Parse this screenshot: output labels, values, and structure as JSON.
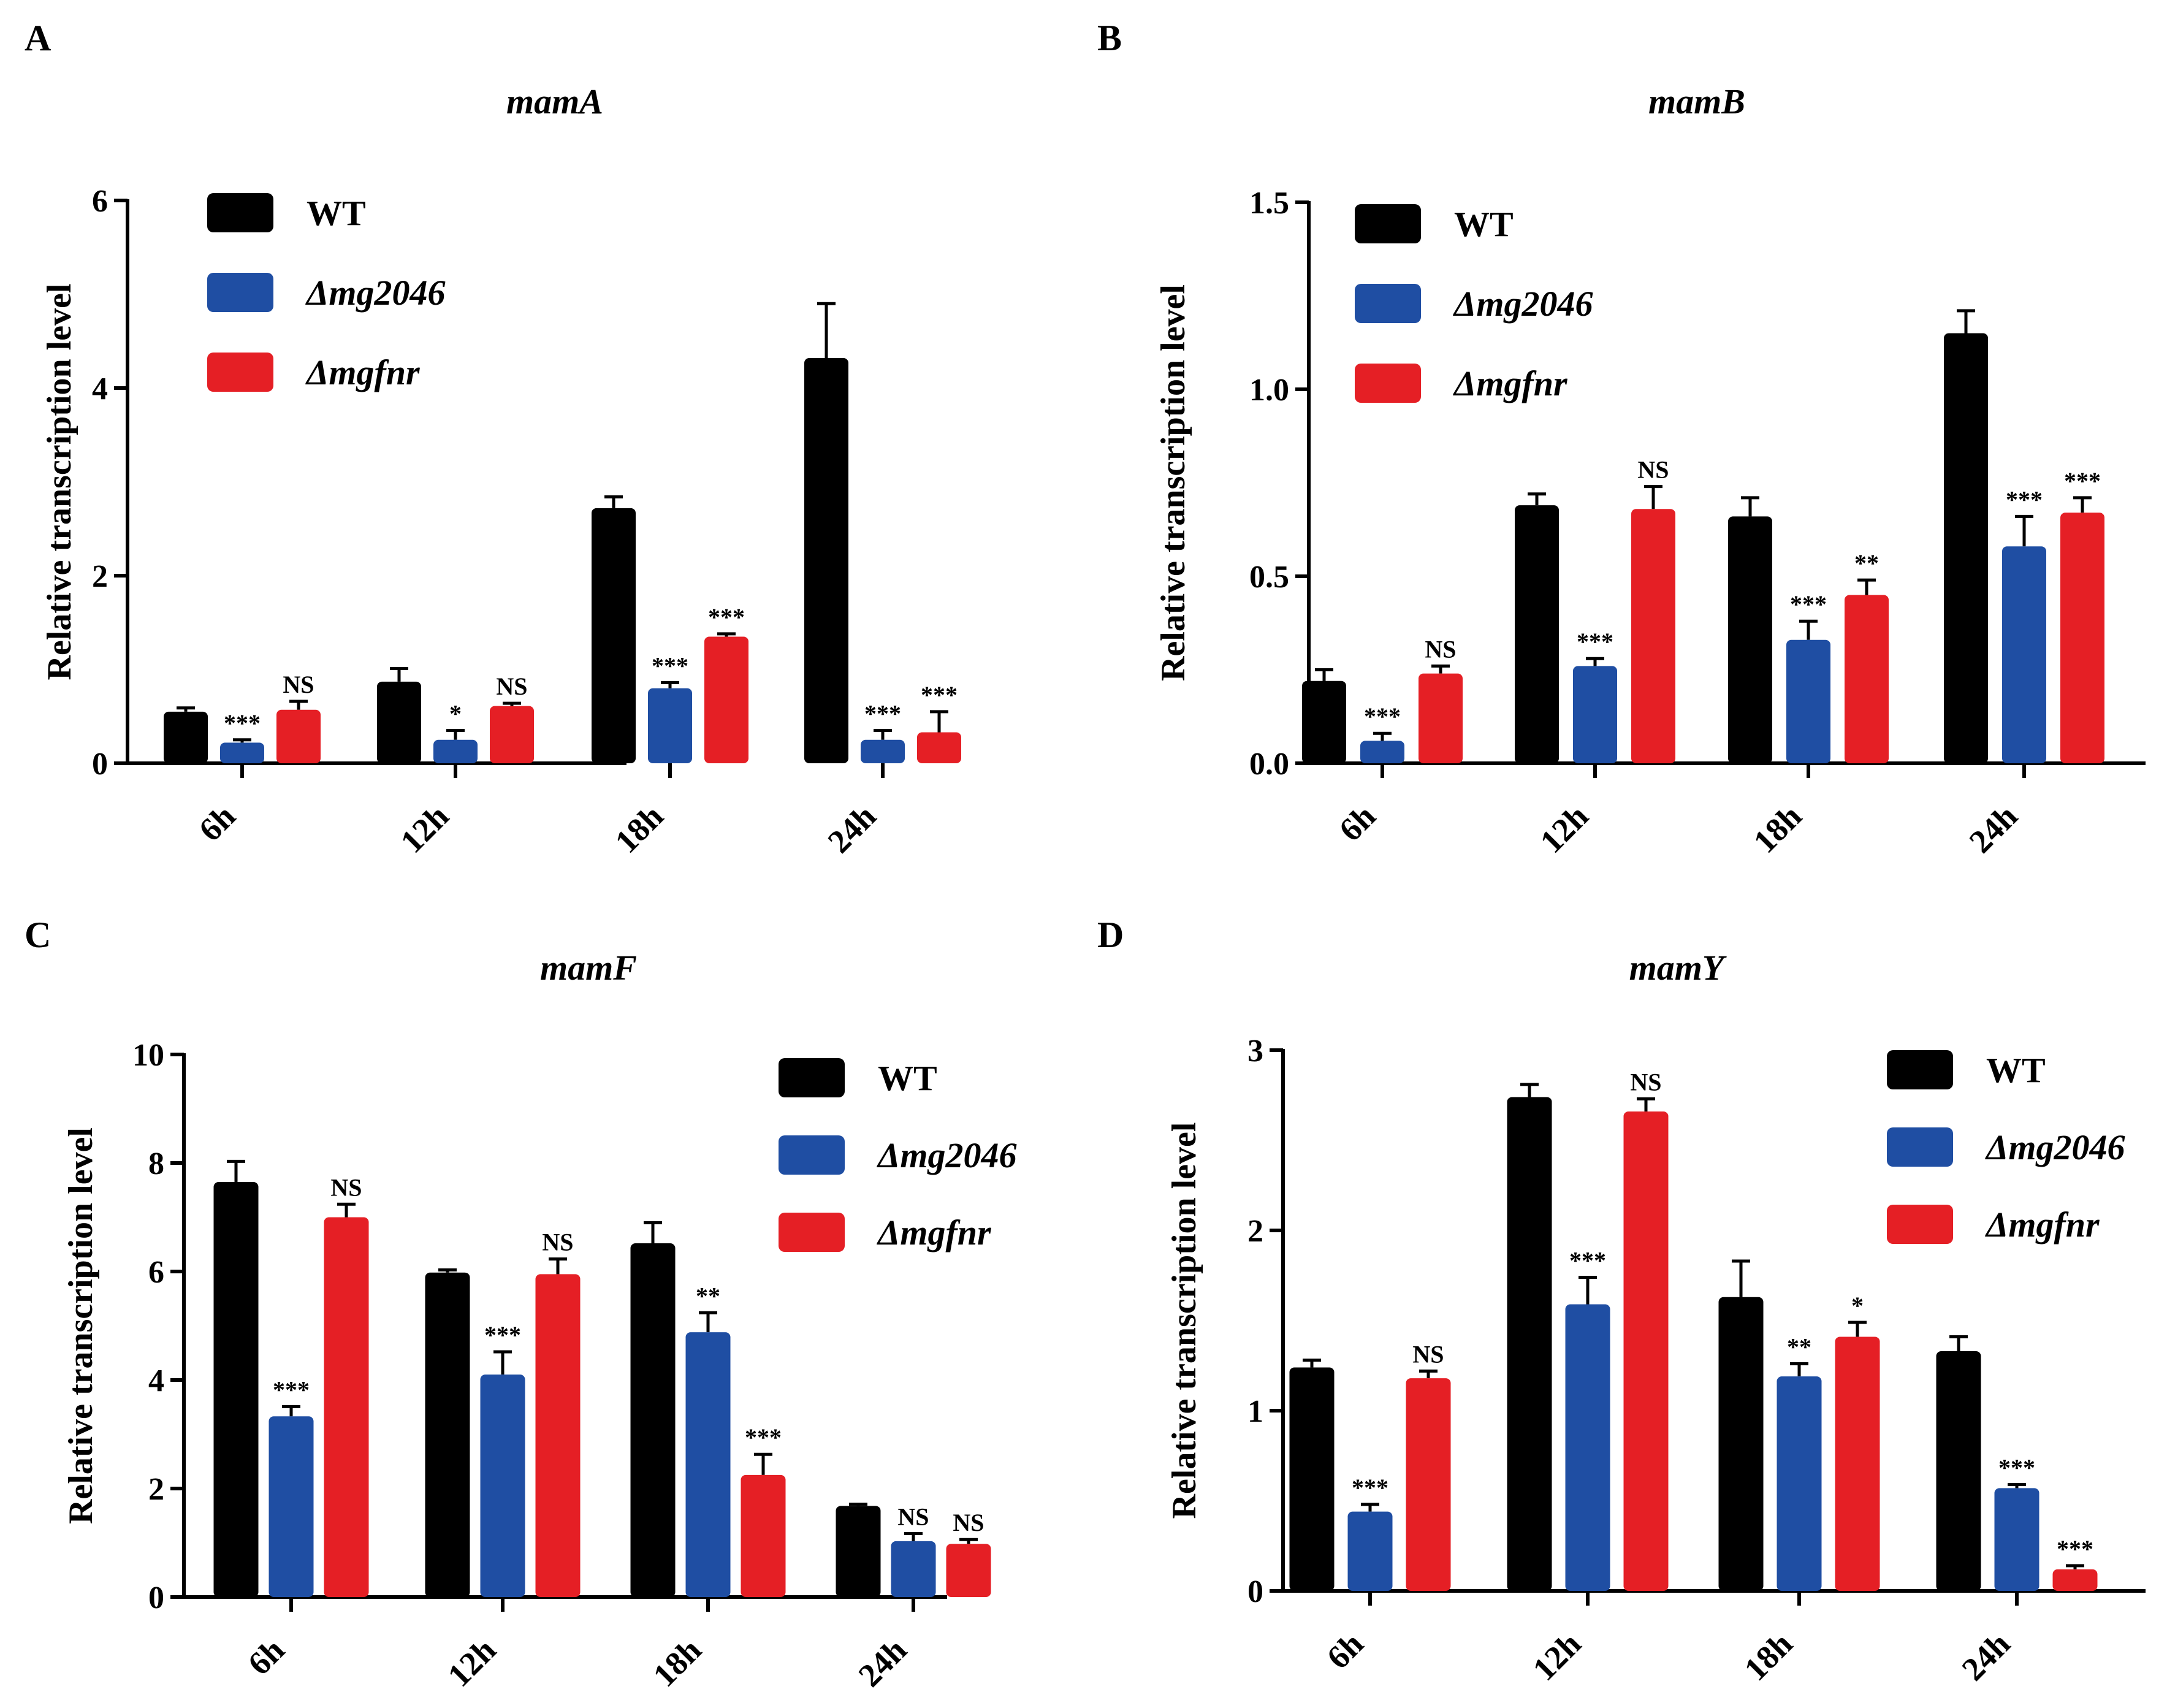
{
  "chart_data": [
    {
      "type": "bar",
      "panel": "A",
      "title": "mamA",
      "xlabel": "",
      "ylabel": "Relative transcription level",
      "ylim": [
        0,
        6
      ],
      "yticks": [
        "0",
        "2",
        "4",
        "6"
      ],
      "categories": [
        "6h",
        "12h",
        "18h",
        "24h"
      ],
      "legend_position": "top-left",
      "series": [
        {
          "name": "WT",
          "color": "#000000",
          "values": [
            0.55,
            0.87,
            2.72,
            4.32
          ],
          "errors": [
            0.04,
            0.14,
            0.12,
            0.58
          ],
          "sig": [
            "",
            "",
            "",
            ""
          ]
        },
        {
          "name": "Δmg2046",
          "color": "#1f4ea3",
          "values": [
            0.22,
            0.25,
            0.8,
            0.25
          ],
          "errors": [
            0.03,
            0.1,
            0.06,
            0.1
          ],
          "sig": [
            "***",
            "*",
            "***",
            "***"
          ]
        },
        {
          "name": "Δmgfnr",
          "color": "#e51f25",
          "values": [
            0.57,
            0.61,
            1.35,
            0.33
          ],
          "errors": [
            0.09,
            0.03,
            0.03,
            0.22
          ],
          "sig": [
            "NS",
            "NS",
            "***",
            "***"
          ]
        }
      ]
    },
    {
      "type": "bar",
      "panel": "B",
      "title": "mamB",
      "xlabel": "",
      "ylabel": "Relative transcription level",
      "ylim": [
        0,
        1.5
      ],
      "yticks": [
        "0.0",
        "0.5",
        "1.0",
        "1.5"
      ],
      "categories": [
        "6h",
        "12h",
        "18h",
        "24h"
      ],
      "legend_position": "top-left",
      "series": [
        {
          "name": "WT",
          "color": "#000000",
          "values": [
            0.22,
            0.69,
            0.66,
            1.15
          ],
          "errors": [
            0.03,
            0.03,
            0.05,
            0.06
          ],
          "sig": [
            "",
            "",
            "",
            ""
          ]
        },
        {
          "name": "Δmg2046",
          "color": "#1f4ea3",
          "values": [
            0.06,
            0.26,
            0.33,
            0.58
          ],
          "errors": [
            0.02,
            0.02,
            0.05,
            0.08
          ],
          "sig": [
            "***",
            "***",
            "***",
            "***"
          ]
        },
        {
          "name": "Δmgfnr",
          "color": "#e51f25",
          "values": [
            0.24,
            0.68,
            0.45,
            0.67
          ],
          "errors": [
            0.02,
            0.06,
            0.04,
            0.04
          ],
          "sig": [
            "NS",
            "NS",
            "**",
            "***"
          ]
        }
      ]
    },
    {
      "type": "bar",
      "panel": "C",
      "title": "mamF",
      "xlabel": "",
      "ylabel": "Relative transcription level",
      "ylim": [
        0,
        10
      ],
      "yticks": [
        "0",
        "2",
        "4",
        "6",
        "8",
        "10"
      ],
      "categories": [
        "6h",
        "12h",
        "18h",
        "24h"
      ],
      "legend_position": "top-right",
      "series": [
        {
          "name": "WT",
          "color": "#000000",
          "values": [
            7.65,
            5.98,
            6.52,
            1.68
          ],
          "errors": [
            0.38,
            0.05,
            0.38,
            0.03
          ],
          "sig": [
            "",
            "",
            "",
            ""
          ]
        },
        {
          "name": "Δmg2046",
          "color": "#1f4ea3",
          "values": [
            3.33,
            4.1,
            4.88,
            1.03
          ],
          "errors": [
            0.18,
            0.42,
            0.36,
            0.14
          ],
          "sig": [
            "***",
            "***",
            "**",
            "NS"
          ]
        },
        {
          "name": "Δmgfnr",
          "color": "#e51f25",
          "values": [
            7.0,
            5.95,
            2.25,
            0.98
          ],
          "errors": [
            0.24,
            0.28,
            0.38,
            0.08
          ],
          "sig": [
            "NS",
            "NS",
            "***",
            "NS"
          ]
        }
      ]
    },
    {
      "type": "bar",
      "panel": "D",
      "title": "mamY",
      "xlabel": "",
      "ylabel": "Relative transcription level",
      "ylim": [
        0,
        3
      ],
      "yticks": [
        "0",
        "1",
        "2",
        "3"
      ],
      "categories": [
        "6h",
        "12h",
        "18h",
        "24h"
      ],
      "legend_position": "top-right",
      "series": [
        {
          "name": "WT",
          "color": "#000000",
          "values": [
            1.24,
            2.74,
            1.63,
            1.33
          ],
          "errors": [
            0.04,
            0.07,
            0.2,
            0.08
          ],
          "sig": [
            "",
            "",
            "",
            ""
          ]
        },
        {
          "name": "Δmg2046",
          "color": "#1f4ea3",
          "values": [
            0.44,
            1.59,
            1.19,
            0.57
          ],
          "errors": [
            0.04,
            0.15,
            0.07,
            0.02
          ],
          "sig": [
            "***",
            "***",
            "**",
            "***"
          ]
        },
        {
          "name": "Δmgfnr",
          "color": "#e51f25",
          "values": [
            1.18,
            2.66,
            1.41,
            0.12
          ],
          "errors": [
            0.04,
            0.07,
            0.08,
            0.02
          ],
          "sig": [
            "NS",
            "NS",
            "*",
            "***"
          ]
        }
      ]
    }
  ]
}
